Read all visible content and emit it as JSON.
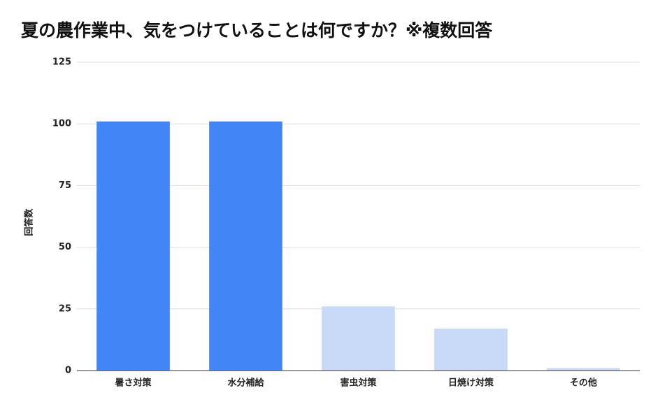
{
  "chart_data": {
    "type": "bar",
    "title": "夏の農作業中、気をつけていることは何ですか？※複数回答",
    "y_label": "回答数",
    "categories": [
      "暑さ対策",
      "水分補給",
      "害虫対策",
      "日焼け対策",
      "その他"
    ],
    "values": [
      101,
      101,
      26,
      17,
      1
    ],
    "colors": [
      "#4285f4",
      "#4285f4",
      "#c9daf8",
      "#c9daf8",
      "#c9daf8"
    ],
    "ylim": [
      0,
      125
    ],
    "yticks": [
      0,
      25,
      50,
      75,
      100,
      125
    ],
    "grid": true
  }
}
